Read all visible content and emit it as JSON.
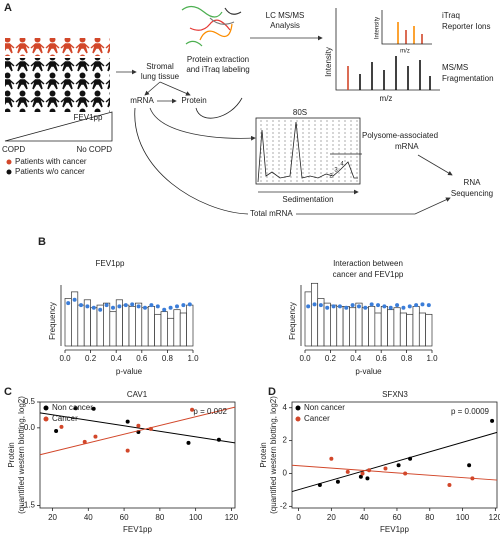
{
  "panels": {
    "a": "A",
    "b": "B",
    "c": "C",
    "d": "D"
  },
  "diagram": {
    "legend_cancer": "Patients with cancer",
    "legend_no_cancer": "Patients w/o cancer",
    "fev1pp": "FEV1pp",
    "copd": "COPD",
    "no_copd": "No COPD",
    "stromal": [
      "Stromal",
      "lung tissue"
    ],
    "mrna": "mRNA",
    "protein": "Protein",
    "extraction": [
      "Protein extraction",
      "and iTraq labeling"
    ],
    "lcms": [
      "LC MS/MS",
      "Analysis"
    ],
    "intensity_outer": "Intensity",
    "mz_outer": "m/z",
    "intensity_inner": "Intensity",
    "mz_inner": "m/z",
    "reporter": [
      "iTraq",
      "Reporter Ions"
    ],
    "fragmentation": [
      "MS/MS",
      "Fragmentation"
    ],
    "peak_80s": "80S",
    "polysome_numbers": [
      "2",
      "3",
      "4"
    ],
    "polysome": [
      "Polysome-associated",
      "mRNA"
    ],
    "sedimentation": "Sedimentation",
    "rna_seq": [
      "RNA",
      "Sequencing"
    ],
    "total_mrna": "Total mRNA"
  },
  "chart_data": [
    {
      "type": "histogram",
      "title": [
        "FEV1pp"
      ],
      "xlabel": "p-value",
      "ylabel": "Frequency",
      "bins": [
        0,
        0.05,
        0.1,
        0.15,
        0.2,
        0.25,
        0.3,
        0.35,
        0.4,
        0.45,
        0.5,
        0.55,
        0.6,
        0.65,
        0.7,
        0.75,
        0.8,
        0.85,
        0.9,
        0.95,
        1
      ],
      "counts": [
        72,
        82,
        62,
        70,
        58,
        62,
        65,
        52,
        70,
        62,
        60,
        65,
        58,
        60,
        48,
        52,
        42,
        55,
        50,
        62
      ],
      "color": "#ffffff",
      "points": {
        "x": [
          0.025,
          0.075,
          0.125,
          0.175,
          0.225,
          0.275,
          0.325,
          0.375,
          0.425,
          0.475,
          0.525,
          0.575,
          0.625,
          0.675,
          0.725,
          0.775,
          0.825,
          0.875,
          0.925,
          0.975
        ],
        "values": [
          65,
          70,
          62,
          60,
          58,
          55,
          62,
          58,
          60,
          62,
          63,
          60,
          58,
          62,
          60,
          55,
          58,
          60,
          62,
          63
        ],
        "color": "#3b7dd8"
      },
      "xlim": [
        0,
        1
      ],
      "ylim": [
        0,
        100
      ],
      "xticks": [
        {
          "value": 0,
          "label": "0.0"
        },
        0.2,
        0.4,
        0.6,
        0.8,
        {
          "value": 1,
          "label": "1.0"
        }
      ]
    },
    {
      "type": "histogram",
      "title": [
        "Interaction between",
        "cancer and FEV1pp"
      ],
      "xlabel": "p-value",
      "ylabel": "Frequency",
      "bins": [
        0,
        0.05,
        0.1,
        0.15,
        0.2,
        0.25,
        0.3,
        0.35,
        0.4,
        0.45,
        0.5,
        0.55,
        0.6,
        0.65,
        0.7,
        0.75,
        0.8,
        0.85,
        0.9,
        0.95,
        1
      ],
      "counts": [
        82,
        95,
        72,
        65,
        62,
        60,
        60,
        58,
        65,
        58,
        60,
        50,
        60,
        55,
        58,
        50,
        48,
        60,
        50,
        48
      ],
      "color": "#ffffff",
      "points": {
        "x": [
          0.025,
          0.075,
          0.125,
          0.175,
          0.225,
          0.275,
          0.325,
          0.375,
          0.425,
          0.475,
          0.525,
          0.575,
          0.625,
          0.675,
          0.725,
          0.775,
          0.825,
          0.875,
          0.925,
          0.975
        ],
        "values": [
          60,
          63,
          62,
          58,
          60,
          60,
          58,
          62,
          60,
          58,
          63,
          62,
          60,
          58,
          62,
          58,
          60,
          62,
          63,
          62
        ],
        "color": "#3b7dd8"
      },
      "xlim": [
        0,
        1
      ],
      "ylim": [
        0,
        100
      ],
      "xticks": [
        {
          "value": 0,
          "label": "0.0"
        },
        0.2,
        0.4,
        0.6,
        0.8,
        {
          "value": 1,
          "label": "1.0"
        }
      ]
    },
    {
      "type": "scatter",
      "title": "CAV1",
      "xlabel": "FEV1pp",
      "ylabel": [
        "Protein",
        "(quantified western blotting, log2)"
      ],
      "annotation": "p = 0.002",
      "legend": "upper left",
      "series": [
        {
          "name": "Non cancer",
          "color": "#000000",
          "x": [
            22,
            33,
            43,
            62,
            68,
            96,
            113
          ],
          "values": [
            -0.06,
            0.38,
            0.37,
            0.12,
            -0.08,
            -0.29,
            -0.23
          ],
          "fit": {
            "x": [
              13,
              122
            ],
            "values": [
              0.29,
              -0.29
            ]
          }
        },
        {
          "name": "Cancer",
          "color": "#d2472a",
          "x": [
            25,
            38,
            44,
            62,
            68,
            75,
            98
          ],
          "values": [
            0.02,
            -0.27,
            -0.17,
            -0.44,
            0.04,
            -0.02,
            0.35
          ],
          "fit": {
            "x": [
              13,
              122
            ],
            "values": [
              -0.52,
              0.4
            ]
          }
        }
      ],
      "xlim": [
        13,
        122
      ],
      "ylim": [
        -1.55,
        0.5
      ],
      "xticks": [
        20,
        40,
        60,
        80,
        100,
        120
      ],
      "yticks": [
        -1.5,
        {
          "value": 0,
          "label": "0.0"
        },
        0.5
      ]
    },
    {
      "type": "scatter",
      "title": "SFXN3",
      "xlabel": "FEV1pp",
      "ylabel": [
        "Protein",
        "(quantified western blotting, log2)"
      ],
      "annotation": "p = 0.0009",
      "legend": "upper left",
      "series": [
        {
          "name": "Non cancer",
          "color": "#000000",
          "x": [
            13,
            24,
            38,
            42,
            61,
            68,
            104,
            118
          ],
          "values": [
            -0.7,
            -0.5,
            -0.2,
            -0.3,
            0.5,
            0.9,
            0.5,
            3.2
          ],
          "fit": {
            "x": [
              -4,
              121
            ],
            "values": [
              -1.1,
              2.5
            ]
          }
        },
        {
          "name": "Cancer",
          "color": "#d2472a",
          "x": [
            20,
            30,
            39,
            43,
            53,
            65,
            92,
            106
          ],
          "values": [
            0.9,
            0.1,
            0,
            0.2,
            0.3,
            0,
            -0.7,
            -0.3
          ],
          "fit": {
            "x": [
              -4,
              121
            ],
            "values": [
              0.5,
              -0.4
            ]
          }
        }
      ],
      "xlim": [
        -4,
        121
      ],
      "ylim": [
        -2.1,
        4.35
      ],
      "xticks": [
        0,
        20,
        40,
        60,
        80,
        100,
        120
      ],
      "yticks": [
        -2,
        0,
        2,
        4
      ]
    }
  ]
}
